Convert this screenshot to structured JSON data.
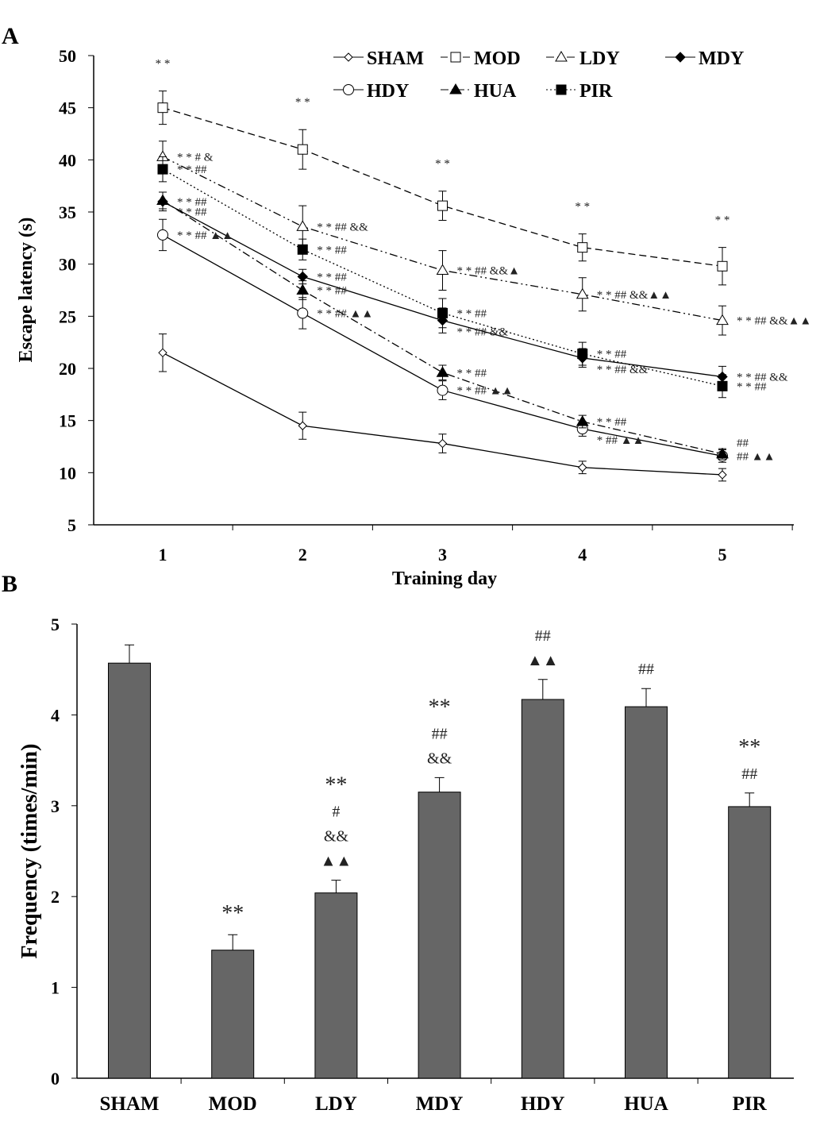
{
  "chart_data": [
    {
      "type": "line",
      "panel_label": "A",
      "xlabel": "Training day",
      "ylabel": "Escape latency (s)",
      "x": [
        1,
        2,
        3,
        4,
        5
      ],
      "xticks": [
        "1",
        "2",
        "3",
        "4",
        "5"
      ],
      "ylim": [
        5,
        50
      ],
      "yticks": [
        5,
        10,
        15,
        20,
        25,
        30,
        35,
        40,
        45,
        50
      ],
      "grid": false,
      "legend_placement": "top-right",
      "series": [
        {
          "name": "SHAM",
          "marker": "open-diamond",
          "dash": "solid",
          "values": [
            21.5,
            14.5,
            12.8,
            10.5,
            9.8
          ],
          "errors": [
            1.8,
            1.3,
            0.9,
            0.6,
            0.6
          ]
        },
        {
          "name": "MOD",
          "marker": "open-square",
          "dash": "dashed",
          "values": [
            45.0,
            41.0,
            35.6,
            31.6,
            29.8
          ],
          "errors": [
            1.6,
            1.9,
            1.4,
            1.3,
            1.8
          ]
        },
        {
          "name": "LDY",
          "marker": "open-triangle",
          "dash": "dash-dot-dot",
          "values": [
            40.3,
            33.6,
            29.4,
            27.1,
            24.6
          ],
          "errors": [
            1.5,
            2.0,
            1.9,
            1.6,
            1.4
          ]
        },
        {
          "name": "MDY",
          "marker": "filled-diamond",
          "dash": "solid",
          "values": [
            36.0,
            28.8,
            24.6,
            21.0,
            19.2
          ],
          "errors": [
            0.9,
            0.7,
            1.2,
            0.9,
            1.0
          ]
        },
        {
          "name": "HDY",
          "marker": "open-circle",
          "dash": "solid",
          "values": [
            32.8,
            25.3,
            17.9,
            14.2,
            11.6
          ],
          "errors": [
            1.5,
            1.5,
            0.9,
            0.7,
            0.6
          ]
        },
        {
          "name": "HUA",
          "marker": "filled-triangle",
          "dash": "dash-dot",
          "values": [
            36.1,
            27.5,
            19.6,
            14.9,
            11.8
          ],
          "errors": [
            0.8,
            0.9,
            0.7,
            0.6,
            0.5
          ]
        },
        {
          "name": "PIR",
          "marker": "filled-square",
          "dash": "dotted",
          "values": [
            39.1,
            31.4,
            25.3,
            21.4,
            18.3
          ],
          "errors": [
            1.2,
            1.0,
            1.4,
            1.1,
            1.1
          ]
        }
      ],
      "annotations": [
        {
          "series": "MOD",
          "day": 1,
          "text": "* *",
          "position": "above"
        },
        {
          "series": "MOD",
          "day": 2,
          "text": "* *",
          "position": "above"
        },
        {
          "series": "MOD",
          "day": 3,
          "text": "* *",
          "position": "above"
        },
        {
          "series": "MOD",
          "day": 4,
          "text": "* *",
          "position": "above"
        },
        {
          "series": "MOD",
          "day": 5,
          "text": "* *",
          "position": "above"
        },
        {
          "series": "LDY",
          "day": 1,
          "text": "* * # &",
          "position": "right"
        },
        {
          "series": "PIR",
          "day": 1,
          "text": "* * ##",
          "position": "right"
        },
        {
          "series": "MDY",
          "day": 1,
          "text": "* * ##",
          "position": "right"
        },
        {
          "series": "HUA",
          "day": 1,
          "text": "* * ##",
          "position": "right-below"
        },
        {
          "series": "HDY",
          "day": 1,
          "text": "* * ## ▲▲",
          "position": "right"
        },
        {
          "series": "LDY",
          "day": 2,
          "text": "* * ## &&",
          "position": "right"
        },
        {
          "series": "PIR",
          "day": 2,
          "text": "* * ##",
          "position": "right"
        },
        {
          "series": "MDY",
          "day": 2,
          "text": "* * ##",
          "position": "right"
        },
        {
          "series": "HUA",
          "day": 2,
          "text": "* * ##",
          "position": "right"
        },
        {
          "series": "HDY",
          "day": 2,
          "text": "* * ## ▲▲",
          "position": "right"
        },
        {
          "series": "LDY",
          "day": 3,
          "text": "* * ## &&▲",
          "position": "right"
        },
        {
          "series": "PIR",
          "day": 3,
          "text": "* * ##",
          "position": "right"
        },
        {
          "series": "MDY",
          "day": 3,
          "text": "* * ## &&",
          "position": "right-below"
        },
        {
          "series": "HUA",
          "day": 3,
          "text": "* * ##",
          "position": "right"
        },
        {
          "series": "HDY",
          "day": 3,
          "text": "* * ## ▲▲",
          "position": "right"
        },
        {
          "series": "LDY",
          "day": 4,
          "text": "* * ## &&▲▲",
          "position": "right"
        },
        {
          "series": "PIR",
          "day": 4,
          "text": "* * ##",
          "position": "right"
        },
        {
          "series": "MDY",
          "day": 4,
          "text": "* * ## &&",
          "position": "right-below"
        },
        {
          "series": "HUA",
          "day": 4,
          "text": "* * ##",
          "position": "right"
        },
        {
          "series": "HDY",
          "day": 4,
          "text": "* ## ▲▲",
          "position": "right-below"
        },
        {
          "series": "LDY",
          "day": 5,
          "text": "* * ## &&▲▲",
          "position": "right"
        },
        {
          "series": "MDY",
          "day": 5,
          "text": "* * ## &&",
          "position": "right"
        },
        {
          "series": "PIR",
          "day": 5,
          "text": "* * ##",
          "position": "right"
        },
        {
          "series": "HUA",
          "day": 5,
          "text": "##",
          "position": "right-above"
        },
        {
          "series": "HDY",
          "day": 5,
          "text": "## ▲▲",
          "position": "right"
        }
      ]
    },
    {
      "type": "bar",
      "panel_label": "B",
      "xlabel": "",
      "ylabel": "Frequency (times/min)",
      "categories": [
        "SHAM",
        "MOD",
        "LDY",
        "MDY",
        "HDY",
        "HUA",
        "PIR"
      ],
      "values": [
        4.57,
        1.41,
        2.04,
        3.15,
        4.17,
        4.09,
        2.99
      ],
      "errors": [
        0.2,
        0.17,
        0.14,
        0.16,
        0.22,
        0.2,
        0.15
      ],
      "ylim": [
        0,
        5
      ],
      "yticks": [
        0,
        1,
        2,
        3,
        4,
        5
      ],
      "grid": false,
      "bar_color": "#666666",
      "annotations": [
        [],
        [
          "**"
        ],
        [
          "**",
          "#",
          "&&",
          "▲▲"
        ],
        [
          "**",
          "##",
          "&&"
        ],
        [
          "##",
          "▲▲"
        ],
        [
          "##"
        ],
        [
          "**",
          "##"
        ]
      ]
    }
  ]
}
